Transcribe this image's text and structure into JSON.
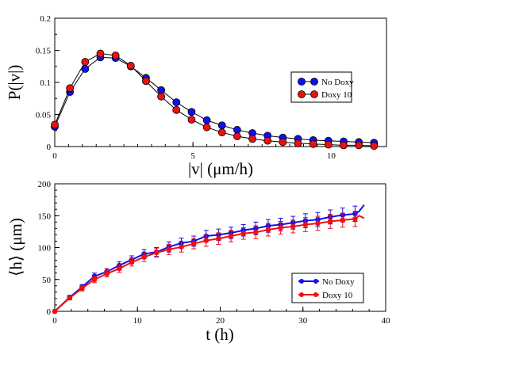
{
  "chart_data": [
    {
      "type": "line",
      "xlabel": "|v| (μm/h)",
      "ylabel": "P(|v|)",
      "xlim": [
        0,
        12
      ],
      "ylim": [
        0,
        0.2
      ],
      "xticks": [
        0,
        5,
        10
      ],
      "yticks": [
        0,
        0.05,
        0.1,
        0.15,
        0.2
      ],
      "ytick_labels": [
        "0",
        "0.05",
        "0.1",
        "0.15",
        "0.2"
      ],
      "legend_position": "right",
      "series": [
        {
          "name": "No Doxy",
          "color": "#1010ee",
          "x": [
            0,
            0.55,
            1.1,
            1.65,
            2.2,
            2.75,
            3.3,
            3.85,
            4.4,
            4.95,
            5.5,
            6.05,
            6.6,
            7.15,
            7.7,
            8.25,
            8.8,
            9.35,
            9.9,
            10.45,
            11.0,
            11.55
          ],
          "y": [
            0.031,
            0.085,
            0.121,
            0.139,
            0.138,
            0.125,
            0.107,
            0.088,
            0.069,
            0.054,
            0.041,
            0.033,
            0.026,
            0.021,
            0.017,
            0.014,
            0.012,
            0.01,
            0.009,
            0.008,
            0.007,
            0.006
          ]
        },
        {
          "name": "Doxy 10",
          "color": "#ee1010",
          "x": [
            0,
            0.55,
            1.1,
            1.65,
            2.2,
            2.75,
            3.3,
            3.85,
            4.4,
            4.95,
            5.5,
            6.05,
            6.6,
            7.15,
            7.7,
            8.25,
            8.8,
            9.35,
            9.9,
            10.45,
            11.0,
            11.55
          ],
          "y": [
            0.034,
            0.091,
            0.132,
            0.145,
            0.142,
            0.126,
            0.102,
            0.078,
            0.057,
            0.042,
            0.03,
            0.022,
            0.016,
            0.012,
            0.009,
            0.007,
            0.005,
            0.004,
            0.003,
            0.002,
            0.002,
            0.001
          ]
        }
      ]
    },
    {
      "type": "line",
      "xlabel": "t (h)",
      "ylabel": "⟨h⟩ (μm)",
      "xlim": [
        0,
        40
      ],
      "ylim": [
        0,
        200
      ],
      "xticks": [
        0,
        10,
        20,
        30,
        40
      ],
      "yticks": [
        0,
        50,
        100,
        150,
        200
      ],
      "legend_position": "bottom-right",
      "series": [
        {
          "name": "No Doxy",
          "color": "#1010ee",
          "x": [
            0,
            1.8,
            3.3,
            4.8,
            6.3,
            7.8,
            9.3,
            10.8,
            12.3,
            13.8,
            15.3,
            16.8,
            18.3,
            19.8,
            21.3,
            22.8,
            24.3,
            25.8,
            27.3,
            28.8,
            30.3,
            31.8,
            33.3,
            34.8,
            36.3
          ],
          "y": [
            0,
            22,
            38,
            55,
            62,
            72,
            81,
            90,
            93,
            101,
            107,
            110,
            118,
            120,
            123,
            127,
            130,
            134,
            136,
            139,
            142,
            144,
            148,
            151,
            153
          ],
          "err": [
            0,
            3,
            4,
            5,
            5,
            6,
            6,
            7,
            7,
            8,
            8,
            8,
            9,
            9,
            9,
            9,
            10,
            10,
            10,
            10,
            11,
            11,
            11,
            11,
            12
          ],
          "tail_x": [
            36.8,
            37.4
          ],
          "tail_y": [
            157,
            167
          ]
        },
        {
          "name": "Doxy 10",
          "color": "#ee1010",
          "x": [
            0,
            1.8,
            3.3,
            4.8,
            6.3,
            7.8,
            9.3,
            10.8,
            12.3,
            13.8,
            15.3,
            16.8,
            18.3,
            19.8,
            21.3,
            22.8,
            24.3,
            25.8,
            27.3,
            28.8,
            30.3,
            31.8,
            33.3,
            34.8,
            36.3
          ],
          "y": [
            0,
            21,
            36,
            50,
            59,
            67,
            77,
            85,
            92,
            97,
            101,
            106,
            111,
            114,
            118,
            122,
            124,
            128,
            131,
            133,
            136,
            138,
            141,
            143,
            145
          ],
          "err": [
            0,
            3,
            4,
            5,
            5,
            6,
            6,
            7,
            7,
            8,
            8,
            8,
            9,
            9,
            9,
            9,
            10,
            10,
            10,
            10,
            11,
            11,
            11,
            11,
            12
          ],
          "tail_x": [
            36.8,
            37.4
          ],
          "tail_y": [
            150,
            146
          ]
        }
      ]
    }
  ]
}
